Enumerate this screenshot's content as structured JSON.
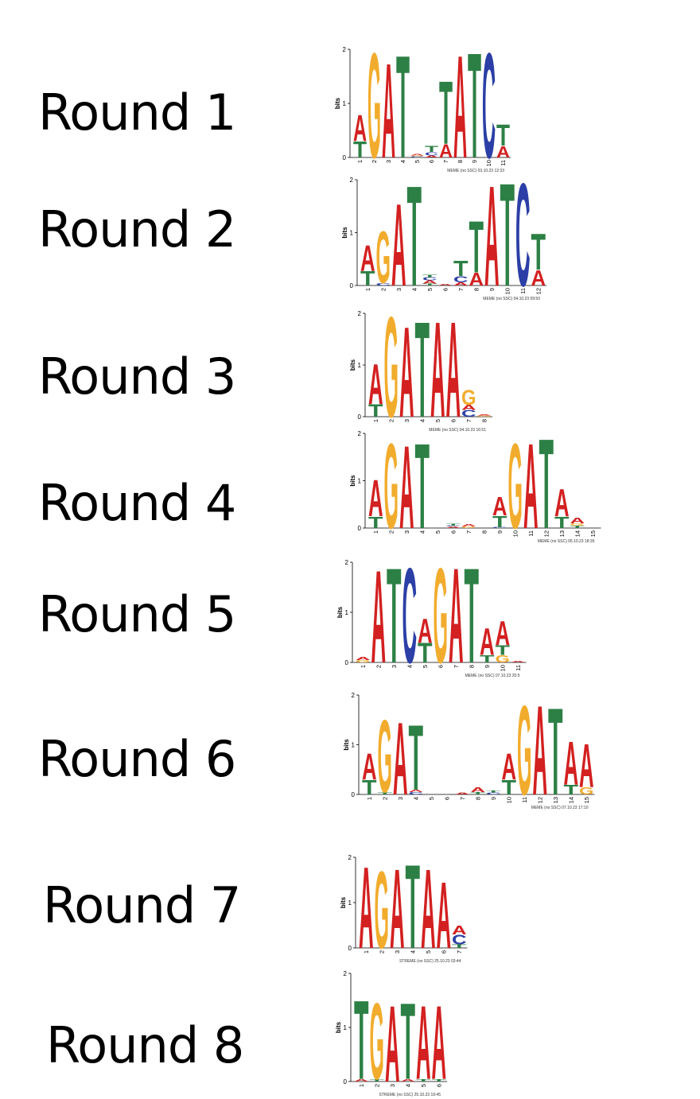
{
  "colors": {
    "A": "#d32020",
    "C": "#2b3fa6",
    "G": "#f2ac2d",
    "T": "#2d8045"
  },
  "y_axis_label": "bits",
  "y_ticks": [
    "0",
    "1",
    "2"
  ],
  "panels": [
    {
      "round_label": "Round 1",
      "footer": "MEME (no SSC) 03.10.23 12:33",
      "positions": [
        [
          [
            "T",
            0.3
          ],
          [
            "A",
            0.5
          ]
        ],
        [
          [
            "G",
            2.0
          ]
        ],
        [
          [
            "A",
            1.8
          ]
        ],
        [
          [
            "T",
            1.95
          ]
        ],
        [
          [
            "C",
            0.02
          ],
          [
            "G",
            0.02
          ],
          [
            "A",
            0.03
          ]
        ],
        [
          [
            "A",
            0.04
          ],
          [
            "C",
            0.06
          ],
          [
            "T",
            0.12
          ]
        ],
        [
          [
            "A",
            0.25
          ],
          [
            "T",
            1.2
          ]
        ],
        [
          [
            "A",
            1.95
          ]
        ],
        [
          [
            "T",
            2.0
          ]
        ],
        [
          [
            "C",
            2.0
          ]
        ],
        [
          [
            "A",
            0.22
          ],
          [
            "T",
            0.4
          ]
        ]
      ]
    },
    {
      "round_label": "Round 2",
      "footer": "MEME (no SSC) 04.10.23 09:50",
      "positions": [
        [
          [
            "T",
            0.28
          ],
          [
            "A",
            0.5
          ]
        ],
        [
          [
            "C",
            0.05
          ],
          [
            "G",
            1.0
          ]
        ],
        [
          [
            "A",
            1.6
          ]
        ],
        [
          [
            "T",
            1.95
          ]
        ],
        [
          [
            "T",
            0.04
          ],
          [
            "A",
            0.06
          ],
          [
            "C",
            0.06
          ],
          [
            "T",
            0.05
          ]
        ],
        [
          [
            "A",
            0.03
          ]
        ],
        [
          [
            "A",
            0.06
          ],
          [
            "C",
            0.12
          ],
          [
            "T",
            0.3
          ]
        ],
        [
          [
            "A",
            0.25
          ],
          [
            "T",
            1.0
          ]
        ],
        [
          [
            "A",
            1.95
          ]
        ],
        [
          [
            "T",
            2.0
          ]
        ],
        [
          [
            "C",
            2.0
          ]
        ],
        [
          [
            "A",
            0.3
          ],
          [
            "T",
            0.7
          ]
        ]
      ]
    },
    {
      "round_label": "Round 3",
      "footer": "MEME (no SSC) 04.10.23 16:51",
      "positions": [
        [
          [
            "T",
            0.25
          ],
          [
            "A",
            0.8
          ]
        ],
        [
          [
            "G",
            2.0
          ]
        ],
        [
          [
            "A",
            1.8
          ]
        ],
        [
          [
            "T",
            1.9
          ]
        ],
        [
          [
            "A",
            1.9
          ]
        ],
        [
          [
            "A",
            1.9
          ]
        ],
        [
          [
            "C",
            0.13
          ],
          [
            "A",
            0.1
          ],
          [
            "G",
            0.3
          ]
        ],
        [
          [
            "G",
            0.02
          ],
          [
            "A",
            0.02
          ]
        ]
      ]
    },
    {
      "round_label": "Round 4",
      "footer": "MEME (no SSC) 05.10.23 18:35",
      "positions": [
        [
          [
            "T",
            0.25
          ],
          [
            "A",
            0.8
          ]
        ],
        [
          [
            "G",
            1.85
          ]
        ],
        [
          [
            "A",
            1.8
          ]
        ],
        [
          [
            "T",
            1.85
          ]
        ],
        [],
        [
          [
            "A",
            0.03
          ],
          [
            "C",
            0.02
          ],
          [
            "T",
            0.04
          ]
        ],
        [
          [
            "G",
            0.03
          ],
          [
            "A",
            0.06
          ]
        ],
        [],
        [
          [
            "C",
            0.02
          ],
          [
            "T",
            0.25
          ],
          [
            "A",
            0.4
          ]
        ],
        [
          [
            "G",
            1.85
          ]
        ],
        [
          [
            "A",
            1.85
          ]
        ],
        [
          [
            "T",
            1.95
          ]
        ],
        [
          [
            "T",
            0.25
          ],
          [
            "A",
            0.6
          ]
        ],
        [
          [
            "T",
            0.05
          ],
          [
            "G",
            0.05
          ],
          [
            "A",
            0.12
          ]
        ],
        []
      ]
    },
    {
      "round_label": "Round 5",
      "footer": "MEME (no SSC) 07.10.23 20:5",
      "positions": [
        [
          [
            "G",
            0.05
          ],
          [
            "A",
            0.06
          ]
        ],
        [
          [
            "A",
            1.9
          ]
        ],
        [
          [
            "T",
            1.95
          ]
        ],
        [
          [
            "C",
            1.95
          ]
        ],
        [
          [
            "T",
            0.4
          ],
          [
            "A",
            0.5
          ]
        ],
        [
          [
            "G",
            1.95
          ]
        ],
        [
          [
            "A",
            1.95
          ]
        ],
        [
          [
            "T",
            1.95
          ]
        ],
        [
          [
            "T",
            0.15
          ],
          [
            "A",
            0.55
          ]
        ],
        [
          [
            "G",
            0.15
          ],
          [
            "T",
            0.2
          ],
          [
            "A",
            0.5
          ]
        ],
        [
          [
            "A",
            0.03
          ]
        ]
      ]
    },
    {
      "round_label": "Round 6",
      "footer": "MEME (no SSC) 07.10.23 17:10",
      "positions": [
        [
          [
            "T",
            0.3
          ],
          [
            "A",
            0.55
          ]
        ],
        [
          [
            "T",
            0.05
          ],
          [
            "G",
            1.5
          ]
        ],
        [
          [
            "A",
            1.5
          ]
        ],
        [
          [
            "C",
            0.05
          ],
          [
            "A",
            0.05
          ],
          [
            "T",
            1.35
          ]
        ],
        [],
        [],
        [
          [
            "A",
            0.04
          ]
        ],
        [
          [
            "T",
            0.05
          ],
          [
            "A",
            0.1
          ]
        ],
        [
          [
            "C",
            0.04
          ],
          [
            "T",
            0.04
          ]
        ],
        [
          [
            "T",
            0.3
          ],
          [
            "A",
            0.55
          ]
        ],
        [
          [
            "G",
            1.85
          ]
        ],
        [
          [
            "A",
            1.85
          ]
        ],
        [
          [
            "T",
            1.8
          ]
        ],
        [
          [
            "T",
            0.2
          ],
          [
            "A",
            0.9
          ]
        ],
        [
          [
            "G",
            0.15
          ],
          [
            "A",
            0.9
          ]
        ]
      ]
    },
    {
      "round_label": "Round 7",
      "footer": "STREME (no SSC) 25.10.23 03:44",
      "positions": [
        [
          [
            "A",
            1.85
          ]
        ],
        [
          [
            "G",
            1.75
          ]
        ],
        [
          [
            "A",
            1.8
          ]
        ],
        [
          [
            "T",
            1.9
          ]
        ],
        [
          [
            "A",
            1.8
          ]
        ],
        [
          [
            "A",
            1.5
          ]
        ],
        [
          [
            "T",
            0.08
          ],
          [
            "C",
            0.22
          ],
          [
            "A",
            0.2
          ]
        ]
      ]
    },
    {
      "round_label": "Round 8",
      "footer": "STREME (no SSC) 25.10.23 19:45",
      "positions": [
        [
          [
            "A",
            0.05
          ],
          [
            "T",
            1.5
          ]
        ],
        [
          [
            "T",
            0.05
          ],
          [
            "G",
            1.45
          ]
        ],
        [
          [
            "A",
            1.45
          ]
        ],
        [
          [
            "A",
            0.05
          ],
          [
            "T",
            1.45
          ]
        ],
        [
          [
            "T",
            0.05
          ],
          [
            "A",
            1.4
          ]
        ],
        [
          [
            "T",
            0.05
          ],
          [
            "A",
            1.4
          ]
        ]
      ]
    }
  ]
}
